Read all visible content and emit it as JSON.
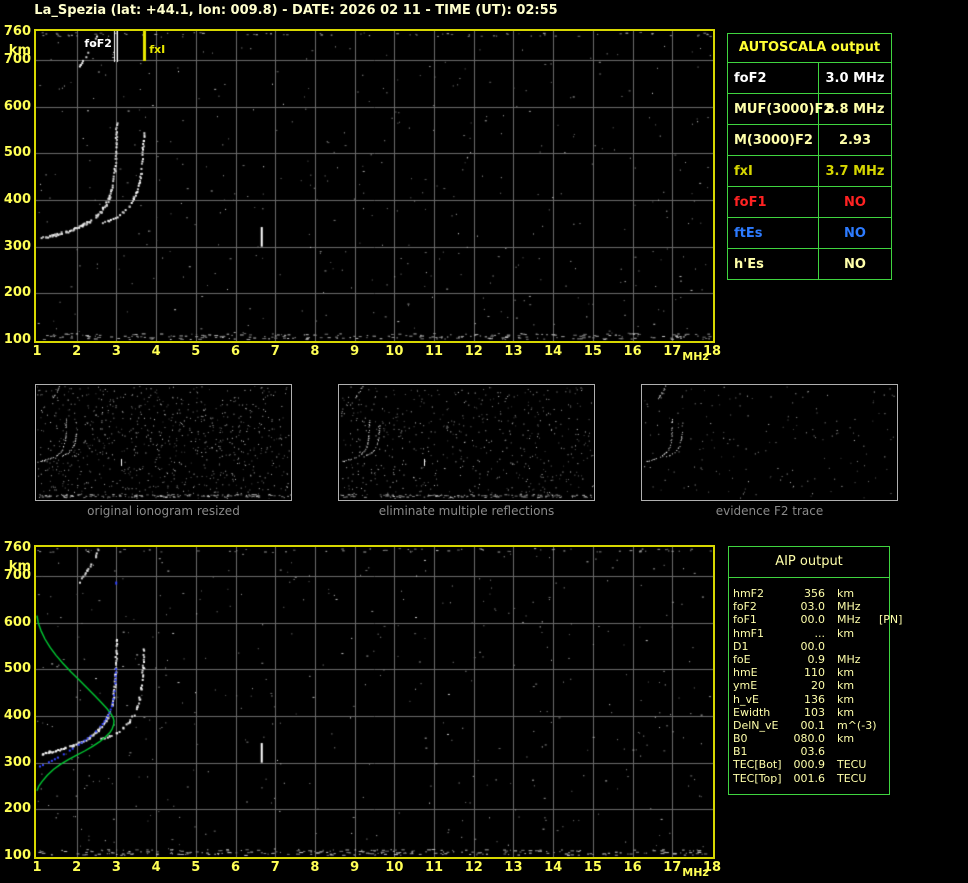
{
  "title": "La_Spezia (lat: +44.1, lon: 009.8) - DATE: 2026 02 11 - TIME (UT): 02:55",
  "colors": {
    "background": "#000000",
    "title": "#ffffcc",
    "axis_label": "#ffff55",
    "plot_border": "#d8d800",
    "grid": "#6b6b6b",
    "table_border": "#3fd43f",
    "autoscala_header": "#ffff33",
    "pale_yellow": "#ffffaa",
    "white": "#ffffff",
    "gold": "#d6d600",
    "red": "#ff2222",
    "blue": "#2d7bff",
    "green_curve": "#00cc33",
    "blue_curve": "#3344ff",
    "thumb_border": "#b0b0b0",
    "caption": "#8a8a8a"
  },
  "axes": {
    "x_ticks": [
      1,
      2,
      3,
      4,
      5,
      6,
      7,
      8,
      9,
      10,
      11,
      12,
      13,
      14,
      15,
      16,
      17,
      18
    ],
    "x_unit": "MHz",
    "y_ticks": [
      760,
      700,
      600,
      500,
      400,
      300,
      200,
      100
    ],
    "y_unit": "km",
    "x_range": [
      1,
      18
    ],
    "y_range": [
      100,
      760
    ]
  },
  "top_plot": {
    "noise_seed": 7,
    "markers": {
      "foF2": {
        "label": "foF2",
        "mhz": 3.0
      },
      "fxI": {
        "label": "fxI",
        "mhz": 3.7
      }
    }
  },
  "bottom_plot": {
    "noise_seed": 13
  },
  "autoscala_table": {
    "header": "AUTOSCALA output",
    "rows": [
      {
        "label": "foF2",
        "value": "3.0 MHz",
        "color": "#ffffff"
      },
      {
        "label": "MUF(3000)F2",
        "value": "8.8 MHz",
        "color": "#ffffaa"
      },
      {
        "label": "M(3000)F2",
        "value": "2.93",
        "color": "#ffffaa"
      },
      {
        "label": "fxI",
        "value": "3.7 MHz",
        "color": "#d6d600"
      },
      {
        "label": "foF1",
        "value": "NO",
        "color": "#ff2222"
      },
      {
        "label": "ftEs",
        "value": "NO",
        "color": "#2d7bff"
      },
      {
        "label": "h'Es",
        "value": "NO",
        "color": "#ffffaa"
      }
    ]
  },
  "thumbnails": [
    {
      "caption": "original ionogram resized",
      "seed": 21,
      "noise": 850,
      "band": true,
      "mark": true,
      "trace_prob": 0.6
    },
    {
      "caption": "eliminate multiple reflections",
      "seed": 34,
      "noise": 580,
      "band": true,
      "mark": true,
      "trace_prob": 0.6
    },
    {
      "caption": "evidence F2 trace",
      "seed": 55,
      "noise": 175,
      "band": false,
      "mark": false,
      "trace_prob": 0.65
    }
  ],
  "aip_table": {
    "header": "AIP output",
    "rows": [
      {
        "label": "hmF2",
        "value": "356",
        "unit": "km",
        "extra": ""
      },
      {
        "label": "foF2",
        "value": "03.0",
        "unit": "MHz",
        "extra": ""
      },
      {
        "label": "foF1",
        "value": "00.0",
        "unit": "MHz",
        "extra": "[PN]"
      },
      {
        "label": "hmF1",
        "value": "...",
        "unit": "km",
        "extra": ""
      },
      {
        "label": "D1",
        "value": "00.0",
        "unit": "",
        "extra": ""
      },
      {
        "label": "foE",
        "value": "0.9",
        "unit": "MHz",
        "extra": ""
      },
      {
        "label": "hmE",
        "value": "110",
        "unit": "km",
        "extra": ""
      },
      {
        "label": "ymE",
        "value": "20",
        "unit": "km",
        "extra": ""
      },
      {
        "label": "h_vE",
        "value": "136",
        "unit": "km",
        "extra": ""
      },
      {
        "label": "Ewidth",
        "value": "103",
        "unit": "km",
        "extra": ""
      },
      {
        "label": "DelN_vE",
        "value": "00.1",
        "unit": "m^(-3)",
        "extra": ""
      },
      {
        "label": "B0",
        "value": "080.0",
        "unit": "km",
        "extra": ""
      },
      {
        "label": "B1",
        "value": "03.6",
        "unit": "",
        "extra": ""
      },
      {
        "label": "TEC[Bot]",
        "value": "000.9",
        "unit": "TECU",
        "extra": ""
      },
      {
        "label": "TEC[Top]",
        "value": "001.6",
        "unit": "TECU",
        "extra": ""
      }
    ]
  },
  "plots_data": {
    "ordinary_trace": [
      [
        1.1,
        320
      ],
      [
        1.3,
        324
      ],
      [
        1.5,
        328
      ],
      [
        1.7,
        333
      ],
      [
        1.9,
        339
      ],
      [
        2.1,
        346
      ],
      [
        2.3,
        355
      ],
      [
        2.45,
        365
      ],
      [
        2.6,
        377
      ],
      [
        2.72,
        391
      ],
      [
        2.81,
        407
      ],
      [
        2.87,
        424
      ],
      [
        2.91,
        443
      ],
      [
        2.94,
        465
      ],
      [
        2.96,
        492
      ],
      [
        2.97,
        520
      ],
      [
        2.98,
        548
      ],
      [
        2.99,
        566
      ]
    ],
    "extraordinary_trace": [
      [
        2.6,
        352
      ],
      [
        2.8,
        358
      ],
      [
        3.0,
        366
      ],
      [
        3.15,
        376
      ],
      [
        3.3,
        389
      ],
      [
        3.42,
        404
      ],
      [
        3.5,
        420
      ],
      [
        3.56,
        438
      ],
      [
        3.6,
        458
      ],
      [
        3.63,
        480
      ],
      [
        3.65,
        505
      ],
      [
        3.66,
        528
      ],
      [
        3.67,
        546
      ]
    ],
    "second_hop_trace": [
      [
        2.05,
        688
      ],
      [
        2.15,
        700
      ],
      [
        2.25,
        713
      ],
      [
        2.35,
        727
      ],
      [
        2.45,
        742
      ],
      [
        2.52,
        757
      ]
    ],
    "vertical_mark": {
      "mhz": 6.66,
      "km_from": 300,
      "km_to": 342
    },
    "green_profile": [
      [
        1.0,
        615
      ],
      [
        1.03,
        600
      ],
      [
        1.1,
        583
      ],
      [
        1.2,
        565
      ],
      [
        1.33,
        547
      ],
      [
        1.48,
        530
      ],
      [
        1.65,
        513
      ],
      [
        1.85,
        495
      ],
      [
        2.05,
        478
      ],
      [
        2.25,
        461
      ],
      [
        2.45,
        444
      ],
      [
        2.62,
        429
      ],
      [
        2.76,
        416
      ],
      [
        2.86,
        405
      ],
      [
        2.92,
        396
      ],
      [
        2.94,
        389
      ],
      [
        2.93,
        381
      ],
      [
        2.89,
        372
      ],
      [
        2.83,
        364
      ],
      [
        2.72,
        355
      ],
      [
        2.58,
        345
      ],
      [
        2.4,
        335
      ],
      [
        2.2,
        325
      ],
      [
        2.0,
        316
      ],
      [
        1.8,
        307
      ],
      [
        1.6,
        297
      ],
      [
        1.42,
        286
      ],
      [
        1.26,
        273
      ],
      [
        1.13,
        260
      ],
      [
        1.04,
        249
      ],
      [
        1.0,
        240
      ]
    ],
    "blue_true_height": [
      [
        1.05,
        294
      ],
      [
        1.2,
        300
      ],
      [
        1.35,
        306
      ],
      [
        1.5,
        313
      ],
      [
        1.65,
        320
      ],
      [
        1.8,
        328
      ],
      [
        1.95,
        336
      ],
      [
        2.1,
        345
      ],
      [
        2.25,
        354
      ],
      [
        2.4,
        364
      ],
      [
        2.52,
        374
      ],
      [
        2.63,
        385
      ],
      [
        2.72,
        396
      ],
      [
        2.8,
        409
      ],
      [
        2.86,
        423
      ],
      [
        2.9,
        438
      ],
      [
        2.93,
        455
      ],
      [
        2.95,
        472
      ],
      [
        2.96,
        495
      ],
      [
        2.97,
        518
      ]
    ],
    "blue_isolated_dot": [
      2.97,
      688
    ]
  }
}
